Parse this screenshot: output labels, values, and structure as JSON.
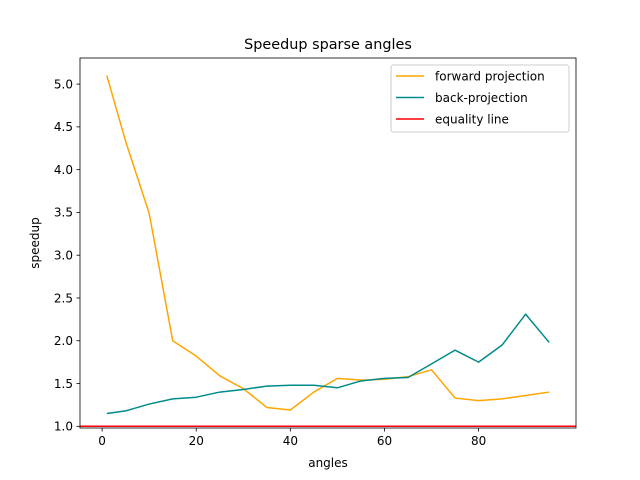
{
  "chart_data": {
    "type": "line",
    "title": "Speedup sparse angles",
    "xlabel": "angles",
    "ylabel": "speedup",
    "xlim": [
      -4.7,
      100.7
    ],
    "ylim": [
      0.98,
      5.305
    ],
    "xticks": [
      0,
      20,
      40,
      60,
      80
    ],
    "xtick_labels": [
      "0",
      "20",
      "40",
      "60",
      "80"
    ],
    "yticks": [
      1.0,
      1.5,
      2.0,
      2.5,
      3.0,
      3.5,
      4.0,
      4.5,
      5.0
    ],
    "ytick_labels": [
      "1.0",
      "1.5",
      "2.0",
      "2.5",
      "3.0",
      "3.5",
      "4.0",
      "4.5",
      "5.0"
    ],
    "grid": false,
    "legend_position": "top-right",
    "x": [
      1,
      5,
      10,
      15,
      20,
      25,
      30,
      35,
      40,
      45,
      50,
      55,
      60,
      65,
      70,
      75,
      80,
      85,
      90,
      95
    ],
    "series": [
      {
        "name": "forward projection",
        "color": "#ffa500",
        "values": [
          5.1,
          4.33,
          3.49,
          2.0,
          1.82,
          1.59,
          1.44,
          1.22,
          1.19,
          1.4,
          1.56,
          1.54,
          1.55,
          1.58,
          1.66,
          1.33,
          1.3,
          1.32,
          1.36,
          1.4
        ]
      },
      {
        "name": "back-projection",
        "color": "#008b8b",
        "values": [
          1.15,
          1.18,
          1.26,
          1.32,
          1.34,
          1.4,
          1.43,
          1.47,
          1.48,
          1.48,
          1.45,
          1.53,
          1.56,
          1.57,
          1.73,
          1.89,
          1.75,
          1.95,
          2.31,
          1.98
        ]
      },
      {
        "name": "equality line",
        "color": "#ff0000",
        "kind": "hline",
        "y": 1.0
      }
    ]
  }
}
